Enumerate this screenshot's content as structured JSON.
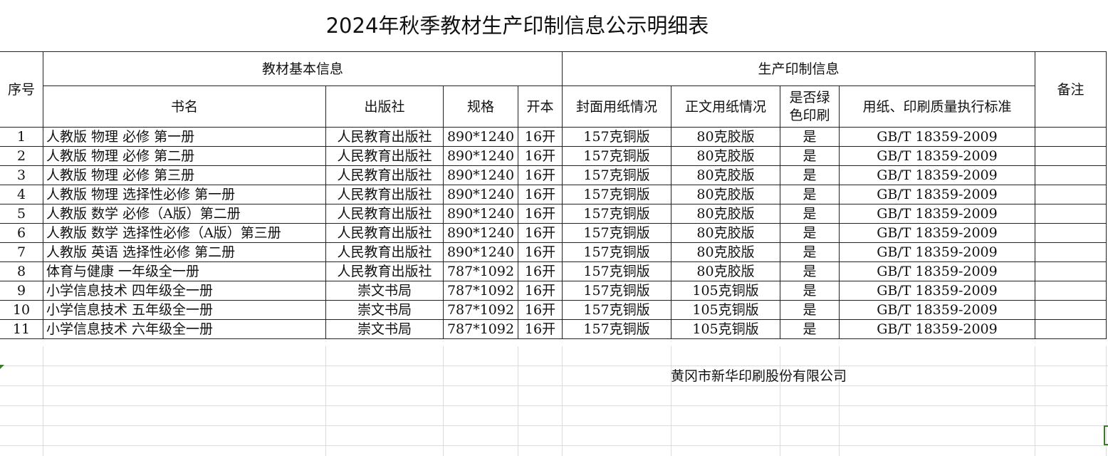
{
  "title": "2024年秋季教材生产印制信息公示明细表",
  "headers": {
    "seq": "序号",
    "group_basic": "教材基本信息",
    "group_print": "生产印制信息",
    "remark": "备注",
    "book": "书名",
    "publisher": "出版社",
    "spec": "规格",
    "format": "开本",
    "cover": "封面用纸情况",
    "body": "正文用纸情况",
    "green": "是否绿色印刷",
    "standard": "用纸、印刷质量执行标准"
  },
  "rows": [
    {
      "seq": "1",
      "book": "人教版 物理 必修 第一册",
      "publisher": "人民教育出版社",
      "spec": "890*1240",
      "format": "16开",
      "cover": "157克铜版",
      "body": "80克胶版",
      "green": "是",
      "standard": "GB/T 18359-2009",
      "remark": ""
    },
    {
      "seq": "2",
      "book": "人教版 物理 必修 第二册",
      "publisher": "人民教育出版社",
      "spec": "890*1240",
      "format": "16开",
      "cover": "157克铜版",
      "body": "80克胶版",
      "green": "是",
      "standard": "GB/T 18359-2009",
      "remark": ""
    },
    {
      "seq": "3",
      "book": "人教版 物理 必修 第三册",
      "publisher": "人民教育出版社",
      "spec": "890*1240",
      "format": "16开",
      "cover": "157克铜版",
      "body": "80克胶版",
      "green": "是",
      "standard": "GB/T 18359-2009",
      "remark": ""
    },
    {
      "seq": "4",
      "book": "人教版 物理 选择性必修 第一册",
      "publisher": "人民教育出版社",
      "spec": "890*1240",
      "format": "16开",
      "cover": "157克铜版",
      "body": "80克胶版",
      "green": "是",
      "standard": "GB/T 18359-2009",
      "remark": ""
    },
    {
      "seq": "5",
      "book": "人教版 数学 必修（A版）第二册",
      "publisher": "人民教育出版社",
      "spec": "890*1240",
      "format": "16开",
      "cover": "157克铜版",
      "body": "80克胶版",
      "green": "是",
      "standard": "GB/T 18359-2009",
      "remark": ""
    },
    {
      "seq": "6",
      "book": "人教版 数学 选择性必修（A版）第三册",
      "publisher": "人民教育出版社",
      "spec": "890*1240",
      "format": "16开",
      "cover": "157克铜版",
      "body": "80克胶版",
      "green": "是",
      "standard": "GB/T 18359-2009",
      "remark": ""
    },
    {
      "seq": "7",
      "book": "人教版 英语 选择性必修 第二册",
      "publisher": "人民教育出版社",
      "spec": "890*1240",
      "format": "16开",
      "cover": "157克铜版",
      "body": "80克胶版",
      "green": "是",
      "standard": "GB/T 18359-2009",
      "remark": ""
    },
    {
      "seq": "8",
      "book": "体育与健康   一年级全一册",
      "publisher": "人民教育出版社",
      "spec": "787*1092",
      "format": "16开",
      "cover": "157克铜版",
      "body": "80克胶版",
      "green": "是",
      "standard": "GB/T 18359-2009",
      "remark": ""
    },
    {
      "seq": "9",
      "book": "小学信息技术 四年级全一册",
      "publisher": "崇文书局",
      "spec": "787*1092",
      "format": "16开",
      "cover": "157克铜版",
      "body": "105克铜版",
      "green": "是",
      "standard": "GB/T 18359-2009",
      "remark": ""
    },
    {
      "seq": "10",
      "book": "小学信息技术 五年级全一册",
      "publisher": "崇文书局",
      "spec": "787*1092",
      "format": "16开",
      "cover": "157克铜版",
      "body": "105克铜版",
      "green": "是",
      "standard": "GB/T 18359-2009",
      "remark": ""
    },
    {
      "seq": "11",
      "book": "小学信息技术 六年级全一册",
      "publisher": "崇文书局",
      "spec": "787*1092",
      "format": "16开",
      "cover": "157克铜版",
      "body": "105克铜版",
      "green": "是",
      "standard": "GB/T 18359-2009",
      "remark": ""
    }
  ],
  "company": "黄冈市新华印刷股份有限公司",
  "colors": {
    "grid": "#dcdcdc",
    "border": "#222222",
    "selection": "#3a7a2a"
  }
}
